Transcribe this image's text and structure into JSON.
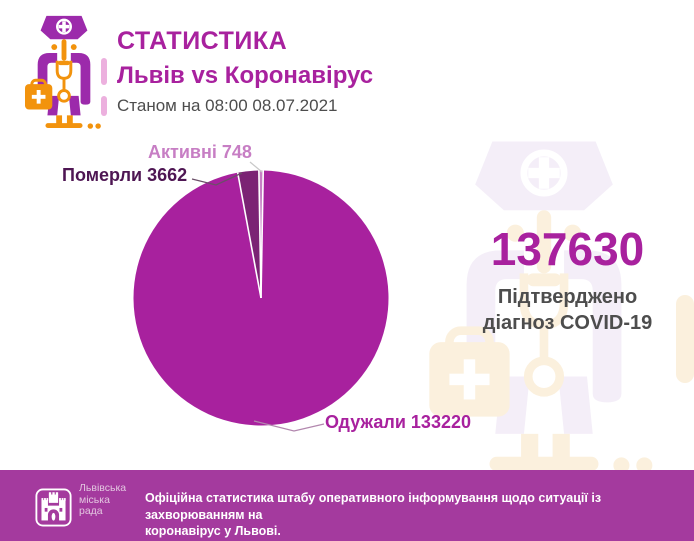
{
  "colors": {
    "magenta": "#a8219e",
    "purple": "#9c2aab",
    "orange": "#f2930d",
    "footer_bg": "#a43a9e",
    "text_gray": "#4d4d4d",
    "active_pink": "#c77ec4",
    "wm_lavender": "#f4eef8",
    "wm_cream": "#fbf0dd"
  },
  "header": {
    "title": "СТАТИСТИКА",
    "subtitle": "Львів vs Коронавірус",
    "as_of": "Станом на 08:00 08.07.2021"
  },
  "chart_data": {
    "type": "pie",
    "total": 137630,
    "start_angle_deg": 1,
    "grid": false,
    "legend_position": "callouts",
    "slices": [
      {
        "label": "Одужали",
        "value": 133220,
        "color": "#a8219e",
        "callout": "Одужали 133220",
        "callout_color": "#a8219e"
      },
      {
        "label": "Померли",
        "value": 3662,
        "color": "#7b2374",
        "callout": "Померли 3662",
        "callout_color": "#4e1653"
      },
      {
        "label": "Активні",
        "value": 748,
        "color": "#c77ec4",
        "callout": "Активні 748",
        "callout_color": "#c77ec4"
      }
    ]
  },
  "summary": {
    "confirmed_value": "137630",
    "caption_line1": "Підтверджено",
    "caption_line2": "діагноз COVID-19"
  },
  "footer": {
    "logo": {
      "org_line1": "Львівська",
      "org_line2": "міська",
      "org_line3": "рада"
    },
    "note_line1": "Офіційна статистика штабу оперативного інформування щодо ситуації із захворюванням на",
    "note_line2": "коронавірус у Львові."
  }
}
